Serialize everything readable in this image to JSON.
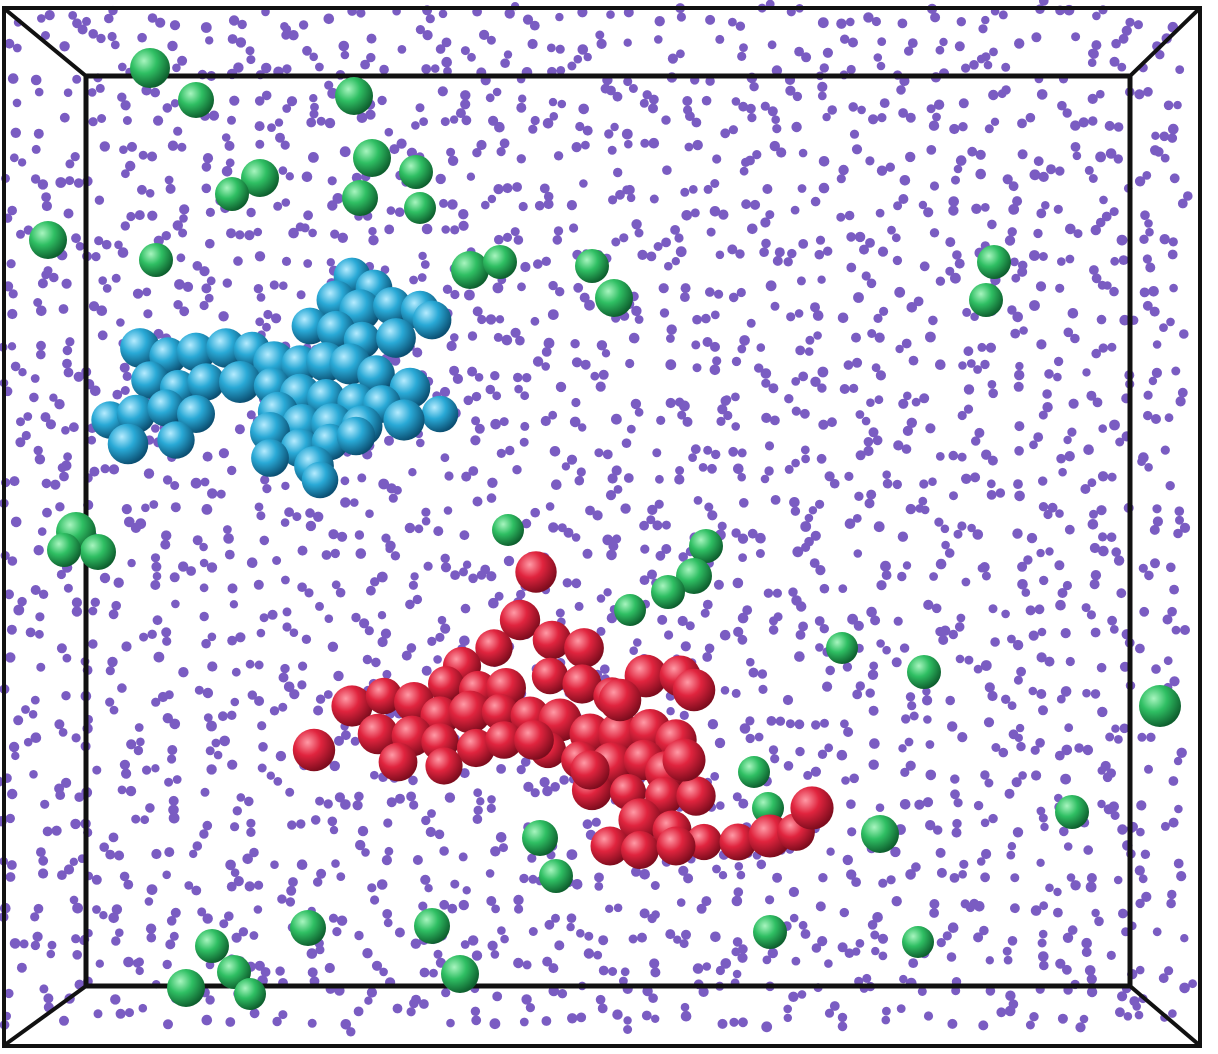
{
  "scene": {
    "kind": "3d-simulation-snapshot",
    "background_color": "#ffffff",
    "box_edge_color": "#111111",
    "solvent": {
      "color": "#7a5cc2"
    },
    "clusters": [
      {
        "name": "cyan-cluster",
        "color": "#29a9d6",
        "highlight": "#9ee4fb",
        "shade": "#0d5f86"
      },
      {
        "name": "red-cluster",
        "color": "#e0243e",
        "highlight": "#ff8a98",
        "shade": "#8e0f22"
      }
    ],
    "isolated_particles": {
      "color": "#2fbf63",
      "highlight": "#9ef0b6",
      "shade": "#0f6a33"
    }
  }
}
